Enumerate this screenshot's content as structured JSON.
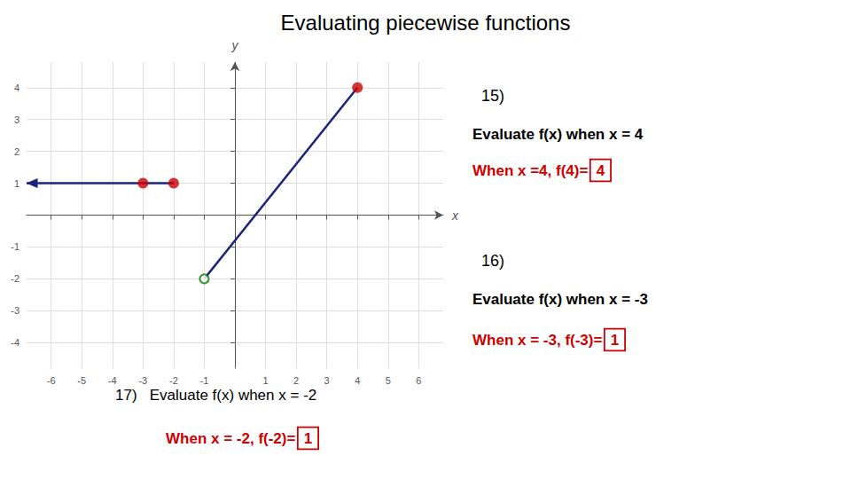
{
  "chart_data": {
    "type": "line",
    "title": "Evaluating piecewise functions",
    "xlabel": "x",
    "ylabel": "y",
    "xlim": [
      -6.8,
      6.8
    ],
    "ylim": [
      -4.8,
      4.8
    ],
    "xticks": [
      -6,
      -5,
      -4,
      -3,
      -2,
      -1,
      1,
      2,
      3,
      4,
      5,
      6
    ],
    "yticks": [
      -4,
      -3,
      -2,
      -1,
      1,
      2,
      3,
      4
    ],
    "grid": true,
    "series": [
      {
        "type": "line",
        "color": "#1a237e",
        "x": [
          -1,
          4
        ],
        "values": [
          -2,
          4
        ]
      },
      {
        "type": "line",
        "color": "#1a237e",
        "x": [
          -2,
          -6.8
        ],
        "values": [
          1,
          1
        ],
        "marker": "arrow"
      },
      {
        "type": "scatter",
        "color": "#008000",
        "x": [
          -1
        ],
        "values": [
          -2
        ],
        "marker": "open_circle"
      },
      {
        "type": "scatter",
        "color": "#cc0000",
        "x": [
          4
        ],
        "values": [
          4
        ],
        "marker": "circle"
      },
      {
        "type": "scatter",
        "color": "#cc0000",
        "x": [
          -2,
          -3
        ],
        "values": [
          1,
          1
        ],
        "marker": "circle"
      }
    ],
    "problems": [
      {
        "texts": [
          "15)",
          "Evaluate f(x) when x = 4"
        ],
        "answer_text": "When x =4, f(4)=",
        "answer": "4",
        "color": "#cc0000"
      },
      {
        "texts": [
          "16)",
          "Evaluate f(x) when x = -3"
        ],
        "answer_text": "When x = -3, f(-3)=",
        "answer": "1",
        "color": "#cc0000"
      },
      {
        "texts": [
          "17)   Evaluate f(x) when x = -2"
        ],
        "answer_text": "When x = -2, f(-2)=",
        "answer": "1",
        "color": "#cc0000"
      }
    ]
  }
}
